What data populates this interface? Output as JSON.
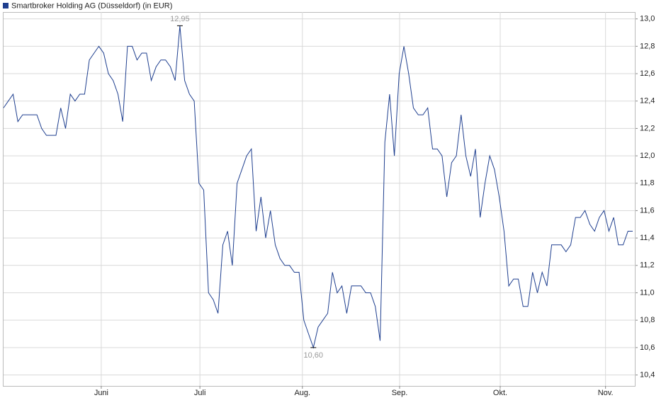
{
  "chart_data": {
    "type": "line",
    "series": [
      {
        "name": "Smartbroker Holding AG (Düsseldorf) (in EUR)",
        "color": "#1f3f8f",
        "values": [
          12.35,
          12.4,
          12.45,
          12.25,
          12.3,
          12.3,
          12.3,
          12.3,
          12.2,
          12.15,
          12.15,
          12.15,
          12.35,
          12.2,
          12.45,
          12.4,
          12.45,
          12.45,
          12.7,
          12.75,
          12.8,
          12.75,
          12.6,
          12.55,
          12.45,
          12.25,
          12.8,
          12.8,
          12.7,
          12.75,
          12.75,
          12.55,
          12.65,
          12.7,
          12.7,
          12.65,
          12.55,
          12.95,
          12.55,
          12.45,
          12.4,
          11.8,
          11.75,
          11.0,
          10.95,
          10.85,
          11.35,
          11.45,
          11.2,
          11.8,
          11.9,
          12.0,
          12.05,
          11.45,
          11.7,
          11.4,
          11.6,
          11.35,
          11.25,
          11.2,
          11.2,
          11.15,
          11.15,
          10.8,
          10.7,
          10.6,
          10.75,
          10.8,
          10.85,
          11.15,
          11.0,
          11.05,
          10.85,
          11.05,
          11.05,
          11.05,
          11.0,
          11.0,
          10.9,
          10.65,
          12.1,
          12.45,
          12.0,
          12.6,
          12.8,
          12.6,
          12.35,
          12.3,
          12.3,
          12.35,
          12.05,
          12.05,
          12.0,
          11.7,
          11.95,
          12.0,
          12.3,
          12.0,
          11.85,
          12.05,
          11.55,
          11.8,
          12.0,
          11.9,
          11.7,
          11.45,
          11.05,
          11.1,
          11.1,
          10.9,
          10.9,
          11.15,
          11.0,
          11.15,
          11.05,
          11.35,
          11.35,
          11.35,
          11.3,
          11.35,
          11.55,
          11.55,
          11.6,
          11.5,
          11.45,
          11.55,
          11.6,
          11.45,
          11.55,
          11.35,
          11.35,
          11.45,
          11.45
        ],
        "value_labels": [
          null,
          null,
          null,
          null,
          null,
          null,
          null,
          null,
          null,
          null,
          null,
          null,
          null,
          null,
          null,
          null,
          null,
          null,
          null,
          null,
          null,
          null,
          null,
          null,
          null,
          null,
          null,
          null,
          null,
          null,
          null,
          null,
          null,
          null,
          null,
          null,
          null,
          "12,95",
          null,
          null,
          null,
          null,
          null,
          null,
          null,
          null,
          null,
          null,
          null,
          null,
          null,
          null,
          null,
          null,
          null,
          null,
          null,
          null,
          null,
          null,
          null,
          null,
          null,
          null,
          null,
          "10,60",
          null,
          null,
          null,
          null,
          null,
          null,
          null,
          null,
          null,
          null,
          null,
          null,
          null,
          null,
          null,
          null,
          null,
          null,
          null,
          null,
          null,
          null,
          null,
          null,
          null,
          null,
          null,
          null,
          null,
          null,
          null,
          null,
          null,
          null,
          null,
          null,
          null,
          null,
          null,
          null,
          null,
          null,
          null,
          null,
          null,
          null,
          null,
          null,
          null,
          null,
          null,
          null,
          null,
          null,
          null,
          null,
          null,
          null,
          null,
          null,
          null,
          null,
          null,
          null,
          null,
          null,
          null
        ]
      }
    ],
    "xlim": [
      0,
      132
    ],
    "xticks": [
      {
        "value": 20.5,
        "label": "Juni"
      },
      {
        "value": 41.2,
        "label": "Juli"
      },
      {
        "value": 62.7,
        "label": "Aug."
      },
      {
        "value": 83.1,
        "label": "Sep."
      },
      {
        "value": 104.2,
        "label": "Okt."
      },
      {
        "value": 126.3,
        "label": "Nov."
      }
    ],
    "ylim": [
      10.32,
      13.05
    ],
    "yticks": [
      {
        "value": 10.4,
        "label": "10,4"
      },
      {
        "value": 10.6,
        "label": "10,6"
      },
      {
        "value": 10.8,
        "label": "10,8"
      },
      {
        "value": 11.0,
        "label": "11,0"
      },
      {
        "value": 11.2,
        "label": "11,2"
      },
      {
        "value": 11.4,
        "label": "11,4"
      },
      {
        "value": 11.6,
        "label": "11,6"
      },
      {
        "value": 11.8,
        "label": "11,8"
      },
      {
        "value": 12.0,
        "label": "12,0"
      },
      {
        "value": 12.2,
        "label": "12,2"
      },
      {
        "value": 12.4,
        "label": "12,4"
      },
      {
        "value": 12.6,
        "label": "12,6"
      },
      {
        "value": 12.8,
        "label": "12,8"
      },
      {
        "value": 13.0,
        "label": "13,0"
      }
    ],
    "grid": true
  }
}
